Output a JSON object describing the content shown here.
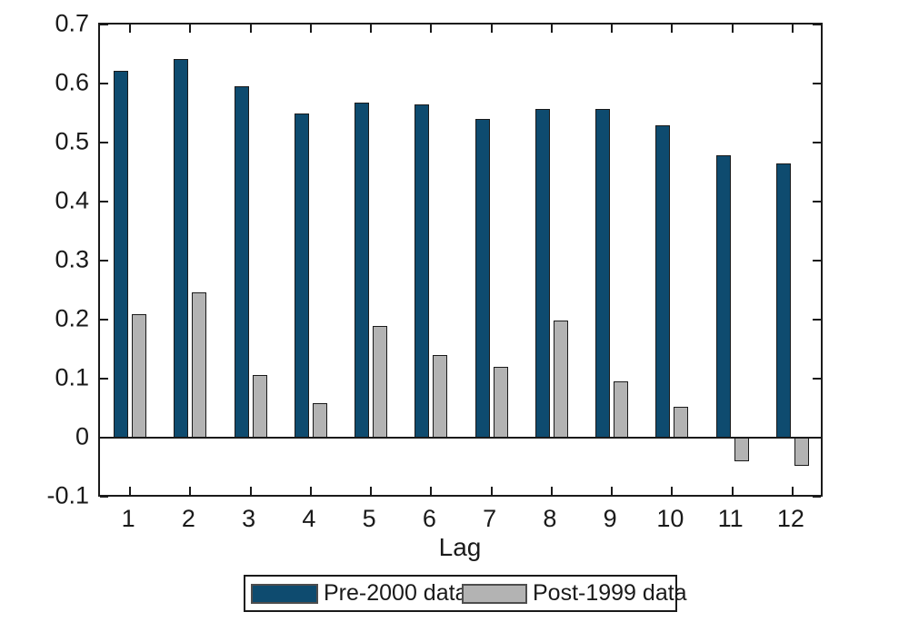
{
  "chart_data": {
    "type": "bar",
    "title": "",
    "xlabel": "Lag",
    "ylabel": "",
    "categories": [
      "1",
      "2",
      "3",
      "4",
      "5",
      "6",
      "7",
      "8",
      "9",
      "10",
      "11",
      "12"
    ],
    "series": [
      {
        "name": "Pre-2000 data",
        "color": "#0e4b6f",
        "values": [
          0.622,
          0.642,
          0.595,
          0.55,
          0.568,
          0.565,
          0.54,
          0.557,
          0.557,
          0.529,
          0.479,
          0.464
        ]
      },
      {
        "name": "Post-1999 data",
        "color": "#b3b3b3",
        "values": [
          0.209,
          0.246,
          0.106,
          0.058,
          0.19,
          0.14,
          0.12,
          0.198,
          0.095,
          0.052,
          -0.04,
          -0.047
        ]
      }
    ],
    "ylim": [
      -0.1,
      0.7
    ],
    "ytick_labels": [
      "0.7",
      "0.6",
      "0.5",
      "0.4",
      "0.3",
      "0.2",
      "0.1",
      "0",
      "-0.1"
    ],
    "grid": false,
    "zero_line": true,
    "legend_position": "below",
    "axis_color": "#1a1a1a",
    "background_color": "#ffffff"
  }
}
